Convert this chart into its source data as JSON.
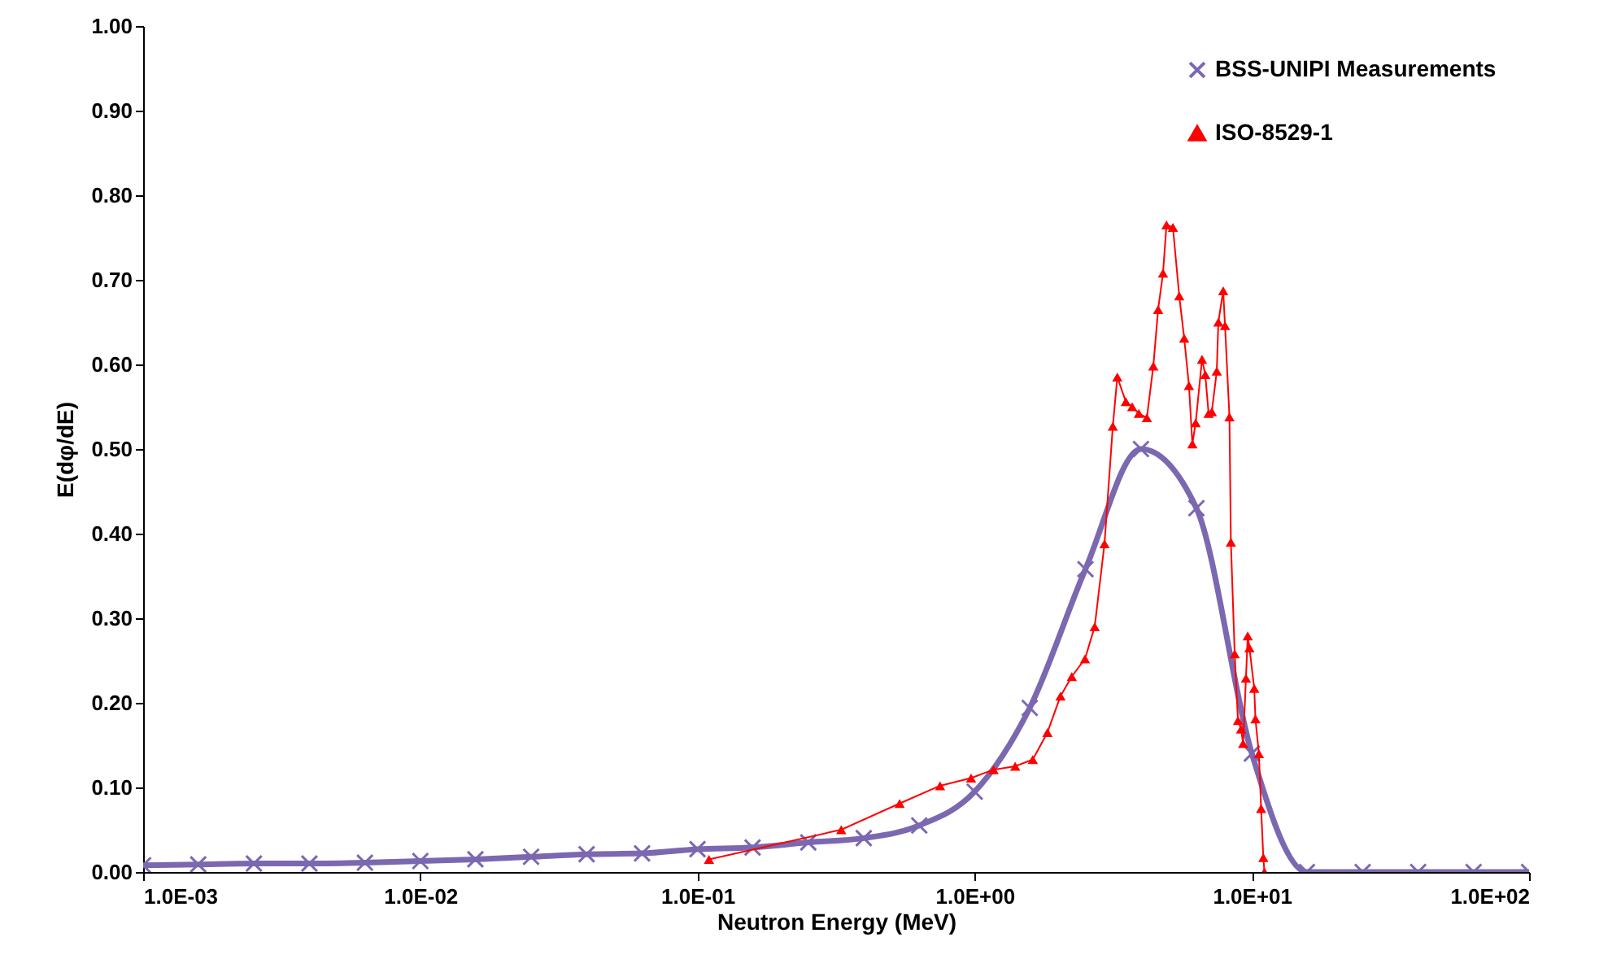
{
  "chart_data": {
    "type": "line",
    "xlabel": "Neutron Energy (MeV)",
    "ylabel": "E(dφ/dE)",
    "log": "x",
    "xlim": [
      0.001,
      100
    ],
    "xticks": [
      {
        "value": 0.001,
        "label": "1.0E-03"
      },
      {
        "value": 0.01,
        "label": "1.0E-02"
      },
      {
        "value": 0.1,
        "label": "1.0E-01"
      },
      {
        "value": 1,
        "label": "1.0E+00"
      },
      {
        "value": 10,
        "label": "1.0E+01"
      },
      {
        "value": 100,
        "label": "1.0E+02"
      }
    ],
    "ylim": [
      0,
      1
    ],
    "yticks": [
      {
        "value": 0,
        "label": "0.00"
      },
      {
        "value": 0.1,
        "label": "0.10"
      },
      {
        "value": 0.2,
        "label": "0.20"
      },
      {
        "value": 0.3,
        "label": "0.30"
      },
      {
        "value": 0.4,
        "label": "0.40"
      },
      {
        "value": 0.5,
        "label": "0.50"
      },
      {
        "value": 0.6,
        "label": "0.60"
      },
      {
        "value": 0.7,
        "label": "0.70"
      },
      {
        "value": 0.8,
        "label": "0.80"
      },
      {
        "value": 0.9,
        "label": "0.90"
      },
      {
        "value": 1,
        "label": "1.00"
      }
    ],
    "grid": false,
    "legend": "top right",
    "series": [
      {
        "name": "BSS-UNIPI Measurements",
        "color": "#7b68b0",
        "marker": "cross",
        "x": [
          0.001,
          0.00158,
          0.00251,
          0.00398,
          0.00631,
          0.01,
          0.0158,
          0.0251,
          0.0398,
          0.0631,
          0.1,
          0.158,
          0.251,
          0.398,
          0.631,
          1,
          1.58,
          2.51,
          3.98,
          6.31,
          10,
          15.8,
          25.1,
          39.8,
          63.1,
          100
        ],
        "values": [
          0.008,
          0.009,
          0.01,
          0.01,
          0.011,
          0.013,
          0.015,
          0.018,
          0.021,
          0.022,
          0.027,
          0.029,
          0.035,
          0.04,
          0.055,
          0.095,
          0.194,
          0.358,
          0.5,
          0.43,
          0.14,
          0,
          0,
          0,
          0,
          0
        ]
      },
      {
        "name": "ISO-8529-1",
        "color": "#ff0000",
        "marker": "triangle",
        "x": [
          0.11,
          0.33,
          0.536,
          0.75,
          0.97,
          1.17,
          1.4,
          1.62,
          1.83,
          2.04,
          2.24,
          2.5,
          2.71,
          2.94,
          3.15,
          3.27,
          3.51,
          3.7,
          3.91,
          4.18,
          4.41,
          4.59,
          4.78,
          4.92,
          5.19,
          5.47,
          5.7,
          5.93,
          6.1,
          6.27,
          6.61,
          6.79,
          6.98,
          7.17,
          7.47,
          7.57,
          7.88,
          8.0,
          8.3,
          8.4,
          8.67,
          8.91,
          9.14,
          9.3,
          9.52,
          9.66,
          9.8,
          10.2,
          10.3,
          10.6,
          10.8,
          11.0,
          11.1
        ],
        "values": [
          0.015,
          0.05,
          0.081,
          0.102,
          0.111,
          0.121,
          0.125,
          0.133,
          0.165,
          0.208,
          0.231,
          0.252,
          0.29,
          0.388,
          0.527,
          0.585,
          0.556,
          0.55,
          0.542,
          0.537,
          0.598,
          0.665,
          0.708,
          0.765,
          0.762,
          0.681,
          0.631,
          0.575,
          0.506,
          0.531,
          0.606,
          0.588,
          0.542,
          0.544,
          0.592,
          0.65,
          0.687,
          0.646,
          0.538,
          0.39,
          0.258,
          0.179,
          0.169,
          0.152,
          0.229,
          0.279,
          0.265,
          0.217,
          0.181,
          0.14,
          0.075,
          0.017,
          0
        ]
      }
    ]
  }
}
